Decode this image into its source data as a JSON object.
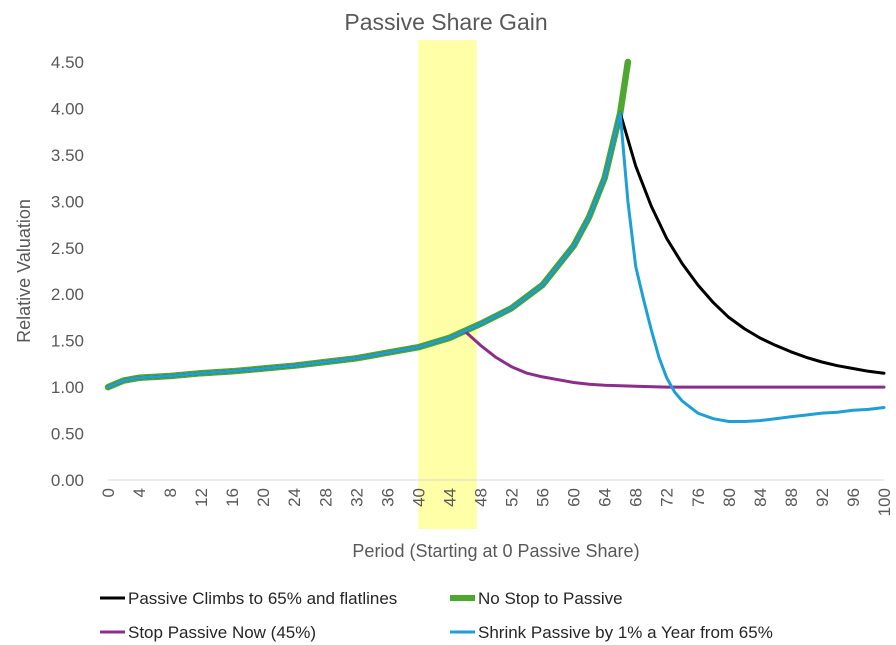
{
  "chart_data": {
    "type": "line",
    "title": "Passive Share Gain",
    "xlabel": "Period (Starting at 0 Passive Share)",
    "ylabel": "Relative Valuation",
    "xlim": [
      0,
      100
    ],
    "ylim": [
      0,
      4.5
    ],
    "x_ticks": [
      "0",
      "4",
      "8",
      "12",
      "16",
      "20",
      "24",
      "28",
      "32",
      "36",
      "40",
      "44",
      "48",
      "52",
      "56",
      "60",
      "64",
      "68",
      "72",
      "76",
      "80",
      "84",
      "88",
      "92",
      "96",
      "100"
    ],
    "y_ticks": [
      "0.00",
      "0.50",
      "1.00",
      "1.50",
      "2.00",
      "2.50",
      "3.00",
      "3.50",
      "4.00",
      "4.50"
    ],
    "highlight_band": {
      "x_start": 40,
      "x_end": 47.5,
      "color": "#ffff99"
    },
    "series": [
      {
        "name": "Passive Climbs to 65% and flatlines",
        "color": "#000000",
        "points": [
          [
            0,
            1.0
          ],
          [
            2,
            1.07
          ],
          [
            4,
            1.1
          ],
          [
            6,
            1.11
          ],
          [
            8,
            1.12
          ],
          [
            12,
            1.15
          ],
          [
            16,
            1.17
          ],
          [
            20,
            1.2
          ],
          [
            24,
            1.23
          ],
          [
            28,
            1.27
          ],
          [
            32,
            1.31
          ],
          [
            36,
            1.37
          ],
          [
            40,
            1.43
          ],
          [
            44,
            1.53
          ],
          [
            48,
            1.68
          ],
          [
            52,
            1.85
          ],
          [
            56,
            2.1
          ],
          [
            60,
            2.52
          ],
          [
            62,
            2.83
          ],
          [
            64,
            3.25
          ],
          [
            66,
            3.95
          ],
          [
            68,
            3.38
          ],
          [
            70,
            2.95
          ],
          [
            72,
            2.6
          ],
          [
            74,
            2.33
          ],
          [
            76,
            2.1
          ],
          [
            78,
            1.91
          ],
          [
            80,
            1.75
          ],
          [
            82,
            1.63
          ],
          [
            84,
            1.53
          ],
          [
            86,
            1.45
          ],
          [
            88,
            1.38
          ],
          [
            90,
            1.32
          ],
          [
            92,
            1.27
          ],
          [
            94,
            1.23
          ],
          [
            96,
            1.2
          ],
          [
            98,
            1.17
          ],
          [
            100,
            1.15
          ]
        ]
      },
      {
        "name": "No Stop to Passive",
        "color": "#4ea72e",
        "points": [
          [
            0,
            1.0
          ],
          [
            2,
            1.07
          ],
          [
            4,
            1.1
          ],
          [
            6,
            1.11
          ],
          [
            8,
            1.12
          ],
          [
            12,
            1.15
          ],
          [
            16,
            1.17
          ],
          [
            20,
            1.2
          ],
          [
            24,
            1.23
          ],
          [
            28,
            1.27
          ],
          [
            32,
            1.31
          ],
          [
            36,
            1.37
          ],
          [
            40,
            1.43
          ],
          [
            44,
            1.53
          ],
          [
            48,
            1.68
          ],
          [
            52,
            1.85
          ],
          [
            56,
            2.1
          ],
          [
            60,
            2.52
          ],
          [
            62,
            2.83
          ],
          [
            64,
            3.25
          ],
          [
            66,
            3.95
          ],
          [
            67,
            4.5
          ]
        ]
      },
      {
        "name": "Stop Passive Now (45%)",
        "color": "#8b2e8b",
        "points": [
          [
            0,
            1.0
          ],
          [
            2,
            1.07
          ],
          [
            4,
            1.1
          ],
          [
            6,
            1.11
          ],
          [
            8,
            1.12
          ],
          [
            12,
            1.15
          ],
          [
            16,
            1.17
          ],
          [
            20,
            1.2
          ],
          [
            24,
            1.23
          ],
          [
            28,
            1.27
          ],
          [
            32,
            1.31
          ],
          [
            36,
            1.37
          ],
          [
            40,
            1.43
          ],
          [
            44,
            1.53
          ],
          [
            46,
            1.6
          ],
          [
            48,
            1.45
          ],
          [
            50,
            1.32
          ],
          [
            52,
            1.22
          ],
          [
            54,
            1.15
          ],
          [
            56,
            1.11
          ],
          [
            58,
            1.08
          ],
          [
            60,
            1.05
          ],
          [
            62,
            1.03
          ],
          [
            64,
            1.02
          ],
          [
            68,
            1.01
          ],
          [
            72,
            1.0
          ],
          [
            76,
            1.0
          ],
          [
            80,
            1.0
          ],
          [
            84,
            1.0
          ],
          [
            88,
            1.0
          ],
          [
            92,
            1.0
          ],
          [
            96,
            1.0
          ],
          [
            100,
            1.0
          ]
        ]
      },
      {
        "name": "Shrink Passive by 1% a Year from 65%",
        "color": "#1e9fd6",
        "points": [
          [
            0,
            1.0
          ],
          [
            2,
            1.07
          ],
          [
            4,
            1.1
          ],
          [
            6,
            1.11
          ],
          [
            8,
            1.12
          ],
          [
            12,
            1.15
          ],
          [
            16,
            1.17
          ],
          [
            20,
            1.2
          ],
          [
            24,
            1.23
          ],
          [
            28,
            1.27
          ],
          [
            32,
            1.31
          ],
          [
            36,
            1.37
          ],
          [
            40,
            1.43
          ],
          [
            44,
            1.53
          ],
          [
            48,
            1.68
          ],
          [
            52,
            1.85
          ],
          [
            56,
            2.1
          ],
          [
            60,
            2.52
          ],
          [
            62,
            2.83
          ],
          [
            64,
            3.25
          ],
          [
            66,
            3.95
          ],
          [
            67,
            3.0
          ],
          [
            68,
            2.3
          ],
          [
            69,
            1.95
          ],
          [
            70,
            1.62
          ],
          [
            71,
            1.32
          ],
          [
            72,
            1.1
          ],
          [
            73,
            0.95
          ],
          [
            74,
            0.85
          ],
          [
            76,
            0.72
          ],
          [
            78,
            0.66
          ],
          [
            80,
            0.63
          ],
          [
            82,
            0.63
          ],
          [
            84,
            0.64
          ],
          [
            86,
            0.66
          ],
          [
            88,
            0.68
          ],
          [
            90,
            0.7
          ],
          [
            92,
            0.72
          ],
          [
            94,
            0.73
          ],
          [
            96,
            0.75
          ],
          [
            98,
            0.76
          ],
          [
            100,
            0.78
          ]
        ]
      }
    ],
    "legend_position": "bottom"
  }
}
